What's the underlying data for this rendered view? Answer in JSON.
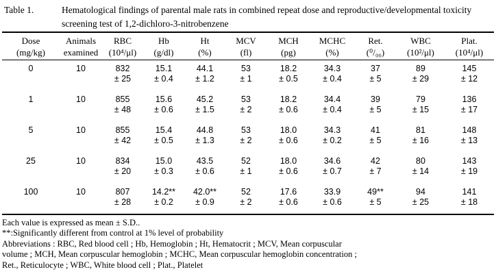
{
  "title": {
    "label": "Table 1.",
    "lines": [
      "Hematological findings of parental male rats in combined repeat dose and reproductive/developmental toxicity",
      "screening test of 1,2-dichloro-3-nitrobenzene"
    ]
  },
  "table": {
    "columns": [
      {
        "name": "Dose",
        "unit": "(mg/kg)"
      },
      {
        "name": "Animals",
        "unit": "examined"
      },
      {
        "name": "RBC",
        "unit": "(10⁴/μl)"
      },
      {
        "name": "Hb",
        "unit": "(g/dl)"
      },
      {
        "name": "Ht",
        "unit": "(%)"
      },
      {
        "name": "MCV",
        "unit": "(fl)"
      },
      {
        "name": "MCH",
        "unit": "(pg)"
      },
      {
        "name": "MCHC",
        "unit": "(%)"
      },
      {
        "name": "Ret.",
        "unit": "(⁰/₀₀)"
      },
      {
        "name": "WBC",
        "unit": "(10²/μl)"
      },
      {
        "name": "Plat.",
        "unit": "(10⁴/μl)"
      }
    ],
    "rows": [
      {
        "dose": "0",
        "animals": "10",
        "cells": [
          {
            "mean": "832",
            "sd": "± 25"
          },
          {
            "mean": "15.1",
            "sd": "± 0.4"
          },
          {
            "mean": "44.1",
            "sd": "± 1.2"
          },
          {
            "mean": "53",
            "sd": "± 1"
          },
          {
            "mean": "18.2",
            "sd": "± 0.5"
          },
          {
            "mean": "34.3",
            "sd": "± 0.4"
          },
          {
            "mean": "37",
            "sd": "± 5"
          },
          {
            "mean": "89",
            "sd": "± 29"
          },
          {
            "mean": "145",
            "sd": "± 12"
          }
        ]
      },
      {
        "dose": "1",
        "animals": "10",
        "cells": [
          {
            "mean": "855",
            "sd": "± 48"
          },
          {
            "mean": "15.6",
            "sd": "± 0.6"
          },
          {
            "mean": "45.2",
            "sd": "± 1.5"
          },
          {
            "mean": "53",
            "sd": "± 2"
          },
          {
            "mean": "18.2",
            "sd": "± 0.6"
          },
          {
            "mean": "34.4",
            "sd": "± 0.4"
          },
          {
            "mean": "39",
            "sd": "± 5"
          },
          {
            "mean": "79",
            "sd": "± 15"
          },
          {
            "mean": "136",
            "sd": "± 17"
          }
        ]
      },
      {
        "dose": "5",
        "animals": "10",
        "cells": [
          {
            "mean": "855",
            "sd": "± 42"
          },
          {
            "mean": "15.4",
            "sd": "± 0.5"
          },
          {
            "mean": "44.8",
            "sd": "± 1.3"
          },
          {
            "mean": "53",
            "sd": "± 2"
          },
          {
            "mean": "18.0",
            "sd": "± 0.6"
          },
          {
            "mean": "34.3",
            "sd": "± 0.2"
          },
          {
            "mean": "41",
            "sd": "± 5"
          },
          {
            "mean": "81",
            "sd": "± 16"
          },
          {
            "mean": "148",
            "sd": "± 13"
          }
        ]
      },
      {
        "dose": "25",
        "animals": "10",
        "cells": [
          {
            "mean": "834",
            "sd": "± 20"
          },
          {
            "mean": "15.0",
            "sd": "± 0.3"
          },
          {
            "mean": "43.5",
            "sd": "± 0.6"
          },
          {
            "mean": "52",
            "sd": "± 1"
          },
          {
            "mean": "18.0",
            "sd": "± 0.6"
          },
          {
            "mean": "34.6",
            "sd": "± 0.7"
          },
          {
            "mean": "42",
            "sd": "± 7"
          },
          {
            "mean": "80",
            "sd": "± 14"
          },
          {
            "mean": "143",
            "sd": "± 19"
          }
        ]
      },
      {
        "dose": "100",
        "animals": "10",
        "cells": [
          {
            "mean": "807",
            "sd": "± 28"
          },
          {
            "mean": "14.2**",
            "sd": "± 0.2"
          },
          {
            "mean": "42.0**",
            "sd": "± 0.9"
          },
          {
            "mean": "52",
            "sd": "± 2"
          },
          {
            "mean": "17.6",
            "sd": "± 0.6"
          },
          {
            "mean": "33.9",
            "sd": "± 0.6"
          },
          {
            "mean": "49**",
            "sd": "± 5"
          },
          {
            "mean": "94",
            "sd": "± 25"
          },
          {
            "mean": "141",
            "sd": "± 18"
          }
        ]
      }
    ]
  },
  "footnotes": [
    "Each value is expressed as mean ± S.D..",
    "**:Significantly different from control at 1% level of probability",
    "Abbreviations : RBC, Red blood cell ; Hb, Hemoglobin ; Ht, Hematocrit ; MCV, Mean corpuscular",
    "volume ; MCH, Mean corpuscular hemoglobin ; MCHC, Mean corpuscular hemoglobin concentration ;",
    "Ret., Reticulocyte ; WBC, White blood cell ; Plat., Platelet"
  ]
}
